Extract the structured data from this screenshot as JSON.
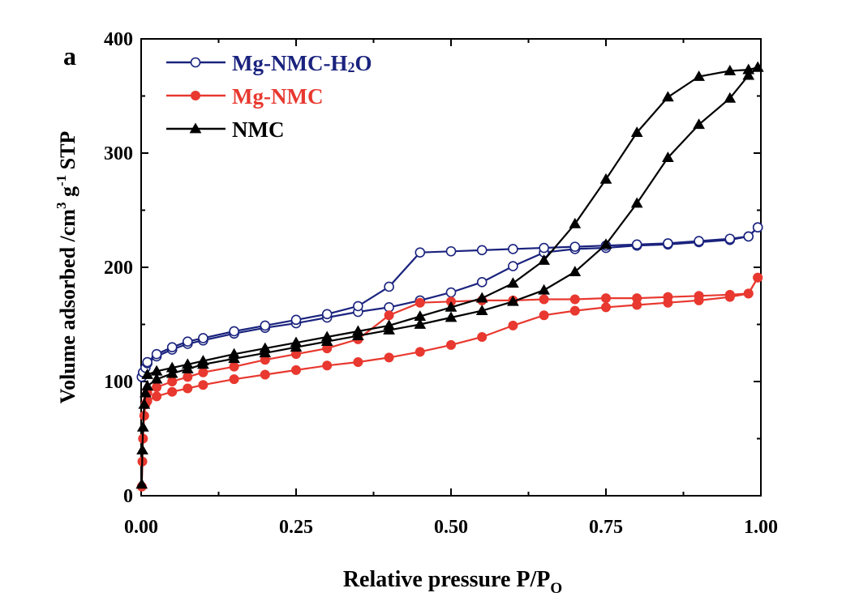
{
  "chart_data": {
    "type": "line",
    "panel_label": "a",
    "xlabel": "Relative pressure P/P",
    "xlabel_sub": "O",
    "ylabel": "Volume adsorbed /cm",
    "ylabel_sup1": "3",
    "ylabel_mid": " g",
    "ylabel_sup2": "-1",
    "ylabel_end": " STP",
    "xlim": [
      0,
      1
    ],
    "ylim": [
      0,
      400
    ],
    "xticks": [
      {
        "value": 0,
        "label": "0.00"
      },
      {
        "value": 0.25,
        "label": "0.25"
      },
      {
        "value": 0.5,
        "label": "0.50"
      },
      {
        "value": 0.75,
        "label": "0.75"
      },
      {
        "value": 1,
        "label": "1.00"
      }
    ],
    "yticks": [
      {
        "value": 0,
        "label": "0"
      },
      {
        "value": 100,
        "label": "100"
      },
      {
        "value": 200,
        "label": "200"
      },
      {
        "value": 300,
        "label": "300"
      },
      {
        "value": 400,
        "label": "400"
      }
    ],
    "legend_position": "top-left",
    "series": [
      {
        "name": "Mg-NMC-H",
        "name_sub": "2",
        "name_end": "O",
        "color": "#1a237e",
        "marker": "open-circle",
        "adsorption": [
          [
            0.001,
            104
          ],
          [
            0.003,
            108
          ],
          [
            0.007,
            112
          ],
          [
            0.01,
            116
          ],
          [
            0.025,
            122
          ],
          [
            0.05,
            128
          ],
          [
            0.075,
            133
          ],
          [
            0.1,
            136
          ],
          [
            0.15,
            142
          ],
          [
            0.2,
            147
          ],
          [
            0.25,
            151
          ],
          [
            0.3,
            156
          ],
          [
            0.35,
            161
          ],
          [
            0.4,
            165
          ],
          [
            0.45,
            171
          ],
          [
            0.5,
            178
          ],
          [
            0.55,
            187
          ],
          [
            0.6,
            201
          ],
          [
            0.65,
            213
          ],
          [
            0.7,
            216
          ],
          [
            0.75,
            217
          ],
          [
            0.8,
            219
          ],
          [
            0.85,
            220
          ],
          [
            0.9,
            222
          ],
          [
            0.95,
            224
          ],
          [
            0.98,
            227
          ],
          [
            0.995,
            235
          ]
        ],
        "desorption": [
          [
            0.995,
            235
          ],
          [
            0.98,
            227
          ],
          [
            0.95,
            225
          ],
          [
            0.9,
            223
          ],
          [
            0.85,
            221
          ],
          [
            0.8,
            220
          ],
          [
            0.75,
            219
          ],
          [
            0.7,
            218
          ],
          [
            0.65,
            217
          ],
          [
            0.6,
            216
          ],
          [
            0.55,
            215
          ],
          [
            0.5,
            214
          ],
          [
            0.45,
            213
          ],
          [
            0.4,
            183
          ],
          [
            0.35,
            166
          ],
          [
            0.3,
            159
          ],
          [
            0.25,
            154
          ],
          [
            0.2,
            149
          ],
          [
            0.15,
            144
          ],
          [
            0.1,
            138
          ],
          [
            0.075,
            135
          ],
          [
            0.05,
            130
          ],
          [
            0.025,
            124
          ],
          [
            0.01,
            117
          ]
        ]
      },
      {
        "name": "Mg-NMC",
        "color": "#e8382f",
        "marker": "filled-circle",
        "adsorption": [
          [
            0.001,
            8
          ],
          [
            0.002,
            30
          ],
          [
            0.003,
            50
          ],
          [
            0.005,
            70
          ],
          [
            0.007,
            80
          ],
          [
            0.01,
            83
          ],
          [
            0.025,
            87
          ],
          [
            0.05,
            91
          ],
          [
            0.075,
            94
          ],
          [
            0.1,
            97
          ],
          [
            0.15,
            102
          ],
          [
            0.2,
            106
          ],
          [
            0.25,
            110
          ],
          [
            0.3,
            114
          ],
          [
            0.35,
            117
          ],
          [
            0.4,
            121
          ],
          [
            0.45,
            126
          ],
          [
            0.5,
            132
          ],
          [
            0.55,
            139
          ],
          [
            0.6,
            149
          ],
          [
            0.65,
            158
          ],
          [
            0.7,
            162
          ],
          [
            0.75,
            165
          ],
          [
            0.8,
            167
          ],
          [
            0.85,
            169
          ],
          [
            0.9,
            171
          ],
          [
            0.95,
            174
          ],
          [
            0.98,
            177
          ],
          [
            0.995,
            191
          ]
        ],
        "desorption": [
          [
            0.995,
            191
          ],
          [
            0.98,
            177
          ],
          [
            0.95,
            176
          ],
          [
            0.9,
            175
          ],
          [
            0.85,
            174
          ],
          [
            0.8,
            173
          ],
          [
            0.75,
            173
          ],
          [
            0.7,
            172
          ],
          [
            0.65,
            172
          ],
          [
            0.6,
            171
          ],
          [
            0.55,
            171
          ],
          [
            0.5,
            170
          ],
          [
            0.45,
            169
          ],
          [
            0.4,
            158
          ],
          [
            0.35,
            137
          ],
          [
            0.3,
            129
          ],
          [
            0.25,
            124
          ],
          [
            0.2,
            119
          ],
          [
            0.15,
            113
          ],
          [
            0.1,
            108
          ],
          [
            0.075,
            104
          ],
          [
            0.05,
            100
          ],
          [
            0.025,
            95
          ],
          [
            0.01,
            90
          ]
        ]
      },
      {
        "name": "NMC",
        "color": "#000000",
        "marker": "filled-triangle",
        "adsorption": [
          [
            0.001,
            10
          ],
          [
            0.002,
            40
          ],
          [
            0.003,
            60
          ],
          [
            0.005,
            80
          ],
          [
            0.007,
            90
          ],
          [
            0.01,
            96
          ],
          [
            0.025,
            102
          ],
          [
            0.05,
            107
          ],
          [
            0.075,
            111
          ],
          [
            0.1,
            115
          ],
          [
            0.15,
            120
          ],
          [
            0.2,
            125
          ],
          [
            0.25,
            130
          ],
          [
            0.3,
            135
          ],
          [
            0.35,
            140
          ],
          [
            0.4,
            145
          ],
          [
            0.45,
            150
          ],
          [
            0.5,
            156
          ],
          [
            0.55,
            162
          ],
          [
            0.6,
            170
          ],
          [
            0.65,
            180
          ],
          [
            0.7,
            196
          ],
          [
            0.75,
            220
          ],
          [
            0.8,
            256
          ],
          [
            0.85,
            296
          ],
          [
            0.9,
            325
          ],
          [
            0.95,
            348
          ],
          [
            0.98,
            368
          ],
          [
            0.995,
            375
          ]
        ],
        "desorption": [
          [
            0.995,
            375
          ],
          [
            0.98,
            373
          ],
          [
            0.95,
            372
          ],
          [
            0.9,
            367
          ],
          [
            0.85,
            349
          ],
          [
            0.8,
            318
          ],
          [
            0.75,
            277
          ],
          [
            0.7,
            238
          ],
          [
            0.65,
            206
          ],
          [
            0.6,
            186
          ],
          [
            0.55,
            173
          ],
          [
            0.5,
            165
          ],
          [
            0.45,
            157
          ],
          [
            0.4,
            149
          ],
          [
            0.35,
            144
          ],
          [
            0.3,
            139
          ],
          [
            0.25,
            134
          ],
          [
            0.2,
            129
          ],
          [
            0.15,
            124
          ],
          [
            0.1,
            118
          ],
          [
            0.075,
            115
          ],
          [
            0.05,
            112
          ],
          [
            0.025,
            109
          ],
          [
            0.01,
            106
          ]
        ]
      }
    ]
  }
}
